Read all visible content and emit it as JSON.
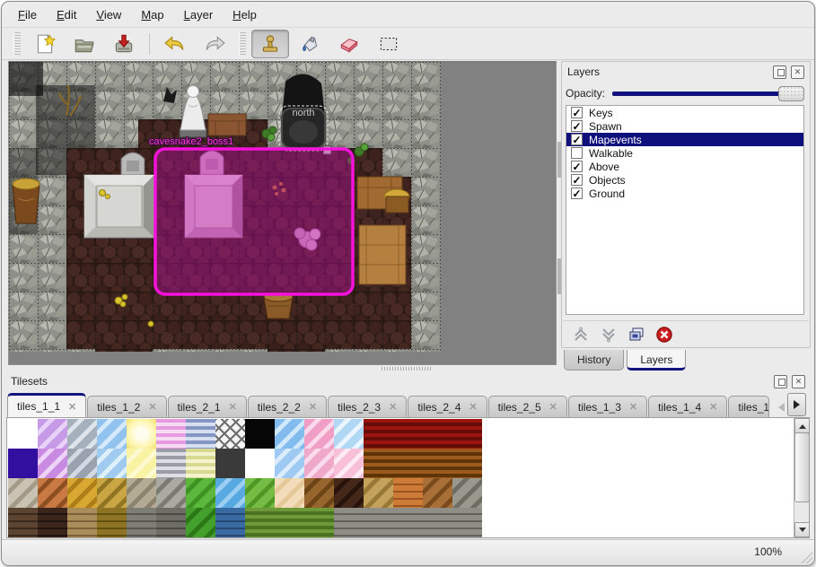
{
  "menubar": {
    "items": [
      {
        "label": "File"
      },
      {
        "label": "Edit"
      },
      {
        "label": "View"
      },
      {
        "label": "Map"
      },
      {
        "label": "Layer"
      },
      {
        "label": "Help"
      }
    ]
  },
  "toolbar": {
    "buttons": [
      {
        "name": "new-file",
        "active": false
      },
      {
        "name": "open-file",
        "active": false
      },
      {
        "name": "save-file",
        "active": false
      },
      {
        "name": "undo",
        "active": false
      },
      {
        "name": "redo",
        "active": false
      },
      {
        "name": "stamp-tool",
        "active": true
      },
      {
        "name": "fill-tool",
        "active": false
      },
      {
        "name": "eraser-tool",
        "active": false
      },
      {
        "name": "select-tool",
        "active": false
      }
    ]
  },
  "map": {
    "gate_label": "north",
    "event_label": "cavesnake2_boss1",
    "selection_color": "#f712dc"
  },
  "layers_panel": {
    "title": "Layers",
    "opacity_label": "Opacity:",
    "opacity_percent": 100,
    "layers": [
      {
        "label": "Keys",
        "checked": true,
        "selected": false
      },
      {
        "label": "Spawn",
        "checked": true,
        "selected": false
      },
      {
        "label": "Mapevents",
        "checked": true,
        "selected": true
      },
      {
        "label": "Walkable",
        "checked": false,
        "selected": false
      },
      {
        "label": "Above",
        "checked": true,
        "selected": false
      },
      {
        "label": "Objects",
        "checked": true,
        "selected": false
      },
      {
        "label": "Ground",
        "checked": true,
        "selected": false
      }
    ],
    "buttons": [
      {
        "name": "raise-layer"
      },
      {
        "name": "lower-layer"
      },
      {
        "name": "duplicate-layer"
      },
      {
        "name": "delete-layer"
      }
    ],
    "tabs": [
      {
        "label": "History",
        "active": false
      },
      {
        "label": "Layers",
        "active": true
      }
    ]
  },
  "tilesets_panel": {
    "title": "Tilesets",
    "tabs": [
      {
        "label": "tiles_1_1",
        "active": true,
        "clipped": false
      },
      {
        "label": "tiles_1_2",
        "active": false,
        "clipped": false
      },
      {
        "label": "tiles_2_1",
        "active": false,
        "clipped": false
      },
      {
        "label": "tiles_2_2",
        "active": false,
        "clipped": false
      },
      {
        "label": "tiles_2_3",
        "active": false,
        "clipped": false
      },
      {
        "label": "tiles_2_4",
        "active": false,
        "clipped": false
      },
      {
        "label": "tiles_2_5",
        "active": false,
        "clipped": false
      },
      {
        "label": "tiles_1_3",
        "active": false,
        "clipped": false
      },
      {
        "label": "tiles_1_4",
        "active": false,
        "clipped": false
      },
      {
        "label": "tiles_1_",
        "active": false,
        "clipped": true
      }
    ],
    "palette_rows": [
      [
        {
          "a": "#ffffff",
          "b": "#ffffff",
          "k": "e"
        },
        {
          "a": "#c79ae8",
          "b": "#e9d2f8",
          "k": "d"
        },
        {
          "a": "#a4b0bc",
          "b": "#dde4ea",
          "k": "d"
        },
        {
          "a": "#92c2ee",
          "b": "#d5eafc",
          "k": "d"
        },
        {
          "a": "#fdf6b0",
          "b": "#f0de6e",
          "k": "r"
        },
        {
          "a": "#e89ae0",
          "b": "#f7daf4",
          "k": "h"
        },
        {
          "a": "#8496c4",
          "b": "#d8dff0",
          "k": "h"
        },
        {
          "a": "#ffffff",
          "b": "#606060",
          "k": "l"
        },
        {
          "a": "#060606",
          "b": "#060606",
          "k": "s"
        },
        {
          "a": "#82bbee",
          "b": "#d1e8fb",
          "k": "d"
        },
        {
          "a": "#f09ec6",
          "b": "#fbd8ea",
          "k": "d"
        },
        {
          "a": "#b0d8f4",
          "b": "#eaf5fd",
          "k": "d"
        },
        {
          "a": "#9c1410",
          "b": "#640d09",
          "k": "h"
        },
        {
          "a": "#9c1410",
          "b": "#640d09",
          "k": "h"
        },
        {
          "a": "#9c1410",
          "b": "#640d09",
          "k": "h"
        },
        {
          "a": "#9c1410",
          "b": "#640d09",
          "k": "h"
        }
      ],
      [
        {
          "a": "#330fa0",
          "b": "#330fa0",
          "k": "s"
        },
        {
          "a": "#c98ae2",
          "b": "#edd3f8",
          "k": "d"
        },
        {
          "a": "#99a2ae",
          "b": "#d2dae2",
          "k": "d"
        },
        {
          "a": "#a0caf0",
          "b": "#def0fc",
          "k": "d"
        },
        {
          "a": "#faf3a4",
          "b": "#fdf9d2",
          "k": "d"
        },
        {
          "a": "#9c9ca8",
          "b": "#dedee6",
          "k": "h"
        },
        {
          "a": "#d8d890",
          "b": "#f3f3cd",
          "k": "h"
        },
        {
          "a": "#3a3a3a",
          "b": "#1e1e1e",
          "k": "s"
        },
        {
          "a": "#ffffff",
          "b": "#ffffff",
          "k": "e"
        },
        {
          "a": "#9ec9f2",
          "b": "#dbedfc",
          "k": "d"
        },
        {
          "a": "#f0a8c9",
          "b": "#fbdaeb",
          "k": "d"
        },
        {
          "a": "#f7c0d8",
          "b": "#fdeaf3",
          "k": "d"
        },
        {
          "a": "#9c5b1c",
          "b": "#5e3408",
          "k": "h"
        },
        {
          "a": "#9c5b1c",
          "b": "#5e3408",
          "k": "h"
        },
        {
          "a": "#9c5b1c",
          "b": "#5e3408",
          "k": "h"
        },
        {
          "a": "#9c5b1c",
          "b": "#5e3408",
          "k": "h"
        }
      ],
      [
        {
          "a": "#cac2b2",
          "b": "#a39a88",
          "k": "d"
        },
        {
          "a": "#c97a42",
          "b": "#8d4e22",
          "k": "d"
        },
        {
          "a": "#d9a832",
          "b": "#ae7e18",
          "k": "d"
        },
        {
          "a": "#c9a544",
          "b": "#917522",
          "k": "d"
        },
        {
          "a": "#b3ab94",
          "b": "#8b836e",
          "k": "d"
        },
        {
          "a": "#abaaa2",
          "b": "#7c7b73",
          "k": "d"
        },
        {
          "a": "#5cb83c",
          "b": "#3e9222",
          "k": "d"
        },
        {
          "a": "#58a8e2",
          "b": "#9ccef2",
          "k": "d"
        },
        {
          "a": "#74bc44",
          "b": "#4f9826",
          "k": "d"
        },
        {
          "a": "#f2dcba",
          "b": "#e4c898",
          "k": "d"
        },
        {
          "a": "#96662e",
          "b": "#6c4416",
          "k": "d"
        },
        {
          "a": "#44291a",
          "b": "#28140a",
          "k": "d"
        },
        {
          "a": "#c4a25c",
          "b": "#987836",
          "k": "d"
        },
        {
          "a": "#cc7c36",
          "b": "#9c521e",
          "k": "b"
        },
        {
          "a": "#a87038",
          "b": "#7a4a1c",
          "k": "d"
        },
        {
          "a": "#98988e",
          "b": "#6d6d64",
          "k": "d"
        }
      ],
      [
        {
          "a": "#5c4432",
          "b": "#3a281a",
          "k": "b"
        },
        {
          "a": "#3a261a",
          "b": "#22130e",
          "k": "b"
        },
        {
          "a": "#a98e5c",
          "b": "#7c6236",
          "k": "b"
        },
        {
          "a": "#8c7424",
          "b": "#62500e",
          "k": "b"
        },
        {
          "a": "#7e7e76",
          "b": "#585852",
          "k": "b"
        },
        {
          "a": "#6e6e66",
          "b": "#4a4a44",
          "k": "b"
        },
        {
          "a": "#44a02c",
          "b": "#2a7816",
          "k": "d"
        },
        {
          "a": "#3a6aa2",
          "b": "#264872",
          "k": "b"
        },
        {
          "a": "#6f9a3a",
          "b": "#4a7220",
          "k": "h"
        },
        {
          "a": "#6f9a3a",
          "b": "#4a7220",
          "k": "h"
        },
        {
          "a": "#6f9a3a",
          "b": "#4a7220",
          "k": "h"
        },
        {
          "a": "#8e8e86",
          "b": "#62625c",
          "k": "b"
        },
        {
          "a": "#8e8e86",
          "b": "#62625c",
          "k": "b"
        },
        {
          "a": "#8e8e86",
          "b": "#62625c",
          "k": "b"
        },
        {
          "a": "#8e8e86",
          "b": "#62625c",
          "k": "b"
        },
        {
          "a": "#8e8e86",
          "b": "#62625c",
          "k": "b"
        }
      ]
    ]
  },
  "statusbar": {
    "zoom": "100%"
  },
  "colors": {
    "accent": "#14147e",
    "selection_fill": "#ba0ea0",
    "map_bg": "#818181"
  }
}
